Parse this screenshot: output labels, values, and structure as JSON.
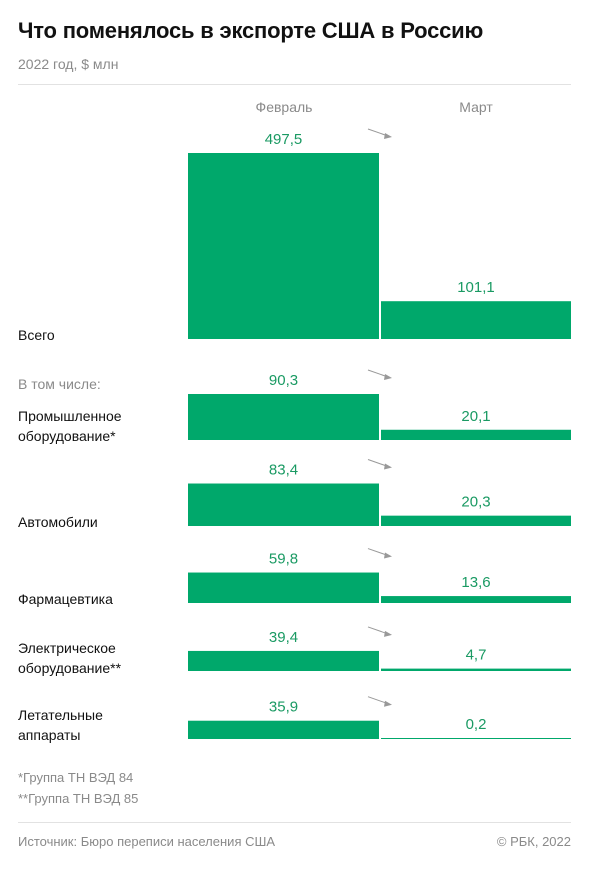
{
  "title": "Что поменялось в экспорте США в Россию",
  "subtitle": "2022 год, $ млн",
  "columns": [
    "Февраль",
    "Март"
  ],
  "subgroup_label": "В том числе:",
  "notes": [
    "*Группа ТН ВЭД 84",
    "**Группа ТН ВЭД 85"
  ],
  "source": "Источник: Бюро переписи населения США",
  "copyright": "© РБК, 2022",
  "colors": {
    "bar": "#00a86b",
    "label": "#1a9a63",
    "arrow": "#999999"
  },
  "chart_data": {
    "type": "bar",
    "categories": [
      "Всего",
      "Промышленное\nоборудование*",
      "Автомобили",
      "Фармацевтика",
      "Электрическое\nоборудование**",
      "Летательные\nаппараты"
    ],
    "series": [
      {
        "name": "Февраль",
        "values": [
          497.5,
          90.3,
          83.4,
          59.8,
          39.4,
          35.9
        ],
        "labels": [
          "497,5",
          "90,3",
          "83,4",
          "59,8",
          "39,4",
          "35,9"
        ]
      },
      {
        "name": "Март",
        "values": [
          101.1,
          20.1,
          20.3,
          13.6,
          4.7,
          0.2
        ],
        "labels": [
          "101,1",
          "20,1",
          "20,3",
          "13,6",
          "4,7",
          "0,2"
        ]
      }
    ],
    "title": "Что поменялось в экспорте США в Россию",
    "ylabel": "$ млн"
  }
}
